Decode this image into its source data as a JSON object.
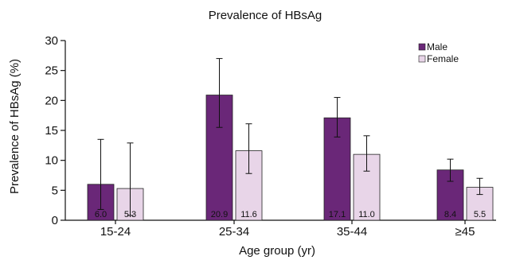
{
  "chart_data": {
    "type": "bar",
    "title": "Prevalence of HBsAg",
    "xlabel": "Age group (yr)",
    "ylabel": "Prevalence of HBsAg (%)",
    "ylim": [
      0,
      30
    ],
    "yticks": [
      0,
      5,
      10,
      15,
      20,
      25,
      30
    ],
    "categories": [
      "15-24",
      "25-34",
      "35-44",
      "≥45"
    ],
    "legend_position": "top-right",
    "grid": false,
    "series": [
      {
        "name": "Male",
        "color": "#6a2778",
        "values": [
          6.0,
          20.9,
          17.1,
          8.4
        ],
        "labels": [
          "6.0",
          "20.9",
          "17.1",
          "8.4"
        ],
        "error_low": [
          1.8,
          15.5,
          13.9,
          6.5
        ],
        "error_high": [
          13.5,
          27.0,
          20.5,
          10.2
        ]
      },
      {
        "name": "Female",
        "color": "#e8d5e8",
        "values": [
          5.3,
          11.6,
          11.0,
          5.5
        ],
        "labels": [
          "5.3",
          "11.6",
          "11.0",
          "5.5"
        ],
        "error_low": [
          0.8,
          7.8,
          8.2,
          4.3
        ],
        "error_high": [
          12.9,
          16.1,
          14.1,
          7.0
        ]
      }
    ]
  }
}
